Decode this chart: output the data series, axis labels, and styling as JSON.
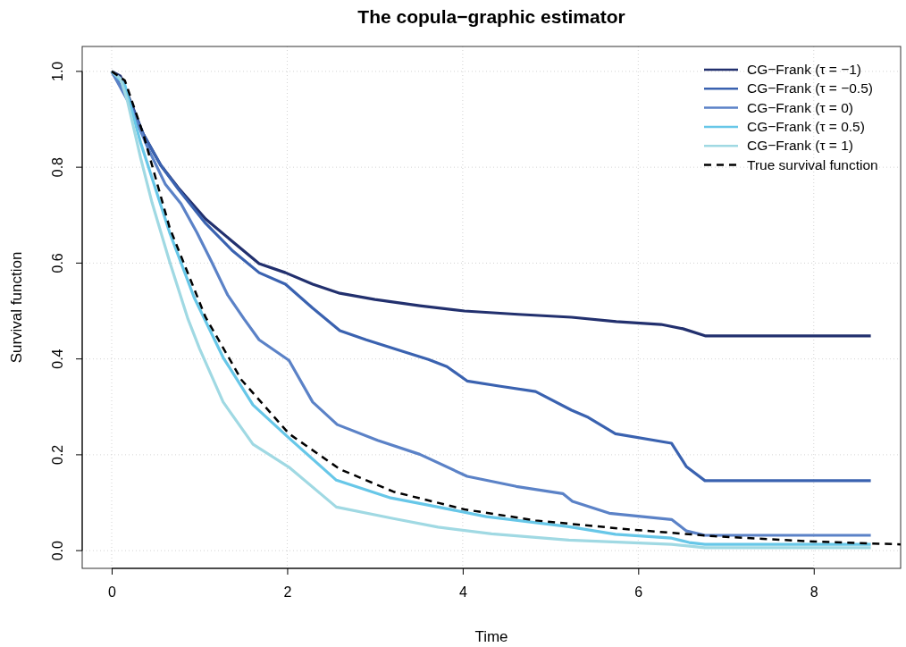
{
  "chart_data": {
    "type": "line",
    "title": "The copula−graphic estimator",
    "xlabel": "Time",
    "ylabel": "Survival function",
    "xlim": [
      -0.336,
      8.99
    ],
    "ylim": [
      -0.037,
      1.052
    ],
    "xticks": [
      0,
      2,
      4,
      6,
      8
    ],
    "yticks": [
      {
        "value": 0,
        "label": "0.0"
      },
      {
        "value": 0.2,
        "label": "0.2"
      },
      {
        "value": 0.4,
        "label": "0.4"
      },
      {
        "value": 0.6,
        "label": "0.6"
      },
      {
        "value": 0.8,
        "label": "0.8"
      },
      {
        "value": 1,
        "label": "1.0"
      }
    ],
    "grid": true,
    "legend": "top right",
    "marker": "none",
    "series": [
      {
        "name": "CG−Frank (τ = −1)",
        "color": "#22306e",
        "line_style": "solid",
        "x": [
          0,
          0.1,
          0.2,
          0.36,
          0.56,
          0.76,
          1.07,
          1.37,
          1.68,
          1.98,
          2.29,
          2.6,
          3.0,
          3.51,
          4.02,
          4.63,
          5.24,
          5.75,
          6.26,
          6.51,
          6.77,
          8.65
        ],
        "values": [
          1.0,
          0.99,
          0.944,
          0.869,
          0.804,
          0.757,
          0.692,
          0.646,
          0.599,
          0.58,
          0.556,
          0.537,
          0.524,
          0.511,
          0.5,
          0.493,
          0.487,
          0.478,
          0.472,
          0.463,
          0.448,
          0.448
        ]
      },
      {
        "name": "CG−Frank (τ = −0.5)",
        "color": "#3a62b0",
        "line_style": "solid",
        "x": [
          0,
          0.2,
          0.36,
          0.56,
          0.76,
          1.07,
          1.37,
          1.68,
          1.98,
          2.29,
          2.6,
          2.9,
          3.31,
          3.61,
          3.82,
          4.05,
          4.43,
          4.83,
          5.24,
          5.43,
          5.74,
          6.38,
          6.55,
          6.76,
          8.65
        ],
        "values": [
          1.0,
          0.94,
          0.869,
          0.804,
          0.754,
          0.683,
          0.627,
          0.58,
          0.556,
          0.506,
          0.459,
          0.44,
          0.416,
          0.399,
          0.384,
          0.354,
          0.343,
          0.332,
          0.293,
          0.278,
          0.244,
          0.224,
          0.175,
          0.146,
          0.146
        ]
      },
      {
        "name": "CG−Frank (τ = 0)",
        "color": "#5b82c7",
        "line_style": "solid",
        "x": [
          0,
          0.2,
          0.41,
          0.61,
          0.79,
          0.97,
          1.14,
          1.32,
          1.51,
          1.68,
          2.02,
          2.29,
          2.57,
          3.03,
          3.51,
          4.05,
          4.61,
          5.14,
          5.25,
          5.67,
          6.38,
          6.55,
          6.76,
          8.65
        ],
        "values": [
          1.0,
          0.933,
          0.841,
          0.765,
          0.724,
          0.664,
          0.602,
          0.534,
          0.483,
          0.44,
          0.397,
          0.31,
          0.263,
          0.23,
          0.201,
          0.155,
          0.134,
          0.119,
          0.103,
          0.078,
          0.065,
          0.041,
          0.032,
          0.032
        ]
      },
      {
        "name": "CG−Frank (τ = 0.5)",
        "color": "#67c7e8",
        "line_style": "solid",
        "x": [
          0,
          0.15,
          0.33,
          0.66,
          0.94,
          1.27,
          1.61,
          2.02,
          2.56,
          3.18,
          3.72,
          4.27,
          5.21,
          5.74,
          6.38,
          6.58,
          6.76,
          8.65
        ],
        "values": [
          1.0,
          0.972,
          0.851,
          0.664,
          0.528,
          0.403,
          0.304,
          0.235,
          0.147,
          0.11,
          0.091,
          0.071,
          0.05,
          0.034,
          0.026,
          0.017,
          0.013,
          0.013
        ]
      },
      {
        "name": "CG−Frank (τ = 1)",
        "color": "#a0d9e3",
        "line_style": "solid",
        "x": [
          0,
          0.1,
          0.18,
          0.33,
          0.46,
          0.66,
          0.87,
          1.0,
          1.27,
          1.61,
          2.02,
          2.56,
          3.21,
          3.72,
          4.33,
          5.21,
          6.38,
          6.76,
          8.65
        ],
        "values": [
          1.0,
          0.985,
          0.938,
          0.819,
          0.726,
          0.603,
          0.483,
          0.422,
          0.31,
          0.222,
          0.174,
          0.091,
          0.067,
          0.049,
          0.035,
          0.022,
          0.013,
          0.006,
          0.006
        ]
      },
      {
        "name": "True survival function",
        "color": "#000000",
        "line_style": "dashed",
        "x": [
          0,
          0.15,
          0.36,
          0.66,
          1.07,
          1.48,
          2.02,
          2.6,
          3.21,
          4.02,
          4.83,
          5.85,
          6.87,
          8.0,
          8.99
        ],
        "values": [
          1.0,
          0.981,
          0.869,
          0.674,
          0.487,
          0.356,
          0.244,
          0.17,
          0.123,
          0.086,
          0.063,
          0.045,
          0.03,
          0.019,
          0.013
        ]
      }
    ]
  }
}
